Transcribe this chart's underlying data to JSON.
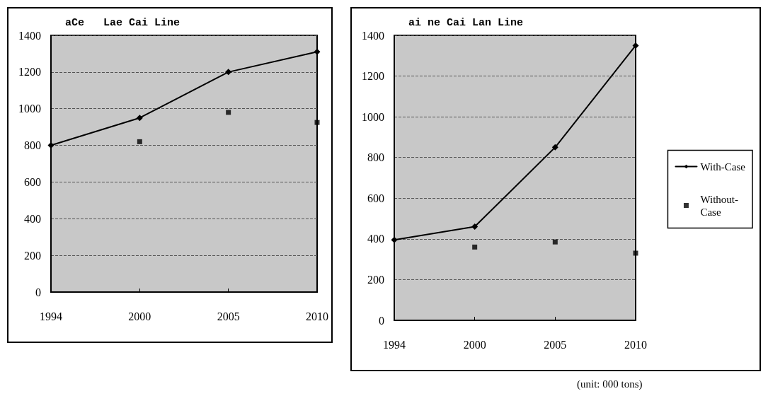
{
  "chart_data": [
    {
      "type": "line",
      "title": "aCe   Lae Cai Line",
      "categories": [
        "1994",
        "2000",
        "2005",
        "2010"
      ],
      "series": [
        {
          "color": "#000000",
          "values": [
            800,
            950,
            1200,
            1310
          ],
          "marker": "diamond"
        },
        {
          "type": "scatter",
          "color": "#000000",
          "values": [
            null,
            820,
            980,
            925
          ],
          "marker": "square"
        }
      ],
      "ylim": [
        0,
        1400
      ],
      "yticks": [
        0,
        200,
        400,
        600,
        800,
        1000,
        1200,
        1400
      ],
      "grid": "y",
      "legend": false,
      "line_style": "solid"
    },
    {
      "type": "line",
      "title": "ai ne Cai Lan Line",
      "categories": [
        "1994",
        "2000",
        "2005",
        "2010"
      ],
      "series": [
        {
          "name": "With-Case",
          "color": "#000000",
          "values": [
            395,
            460,
            850,
            1350
          ],
          "marker": "diamond"
        },
        {
          "name": "Without-Case",
          "type": "scatter",
          "color": "#000000",
          "values": [
            null,
            360,
            385,
            330
          ],
          "marker": "square"
        }
      ],
      "ylim": [
        0,
        1400
      ],
      "yticks": [
        0,
        200,
        400,
        600,
        800,
        1000,
        1200,
        1400
      ],
      "grid": "y",
      "legend": "right",
      "line_style": "solid",
      "annotations": [
        "(unit: 000 tons)"
      ]
    }
  ]
}
